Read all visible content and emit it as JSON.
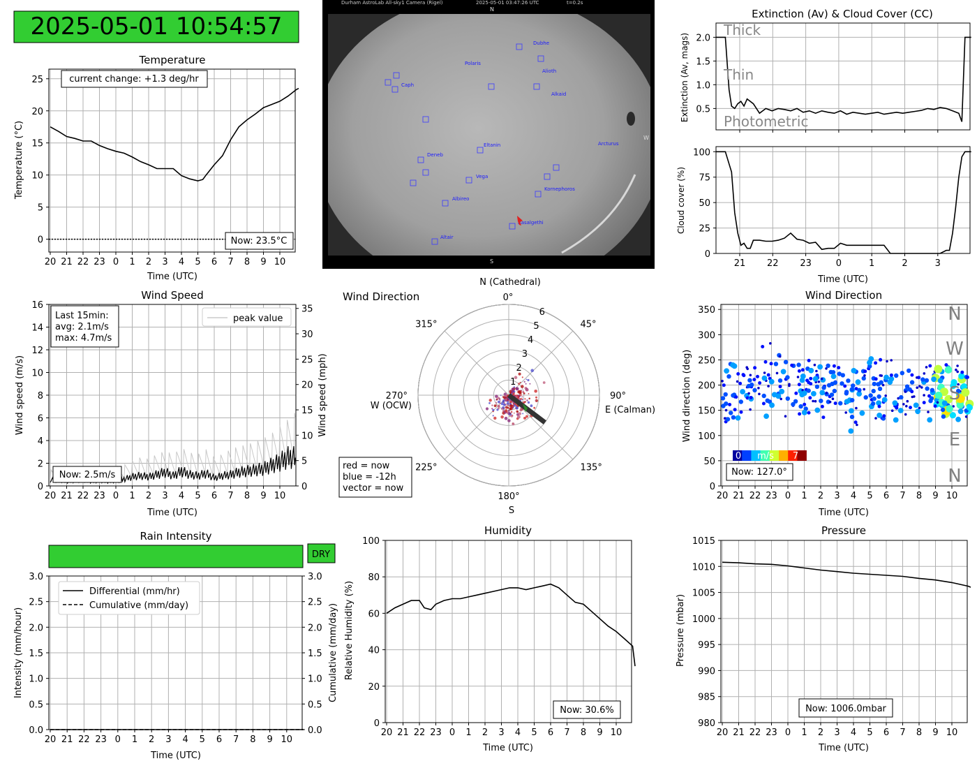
{
  "clock": {
    "text": "2025-05-01 10:54:57",
    "bg": "#32cd32"
  },
  "chart_data": [
    {
      "id": "temperature",
      "type": "line",
      "title": "Temperature",
      "xlabel": "Time (UTC)",
      "ylabel": "Temperature (°C)",
      "xticks": [
        "20",
        "21",
        "22",
        "23",
        "0",
        "1",
        "2",
        "3",
        "4",
        "5",
        "6",
        "7",
        "8",
        "9",
        "10"
      ],
      "yticks": [
        "0",
        "5",
        "10",
        "15",
        "20",
        "25"
      ],
      "xlim": [
        0,
        15.15
      ],
      "ylim": [
        -2,
        26.5
      ],
      "annotation": "current change: +1.3 deg/hr",
      "now": "Now: 23.5°C",
      "x": [
        0,
        0.5,
        1,
        1.5,
        2,
        2.5,
        3,
        3.5,
        4,
        4.5,
        5,
        5.5,
        6,
        6.5,
        7,
        7.5,
        8,
        8.5,
        9,
        9.3,
        9.5,
        10,
        10.5,
        11,
        11.5,
        12,
        12.5,
        13,
        13.5,
        14,
        14.5,
        15,
        15.15
      ],
      "y": [
        17.5,
        16.8,
        16.0,
        15.7,
        15.3,
        15.3,
        14.6,
        14.1,
        13.7,
        13.4,
        12.8,
        12.1,
        11.6,
        11.0,
        11.0,
        11.0,
        9.9,
        9.4,
        9.1,
        9.3,
        10.0,
        11.6,
        13.0,
        15.5,
        17.5,
        18.6,
        19.5,
        20.5,
        21.0,
        21.5,
        22.3,
        23.3,
        23.5
      ]
    },
    {
      "id": "wind-speed",
      "type": "line",
      "title": "Wind Speed",
      "xlabel": "Time (UTC)",
      "ylabel": "Wind speed (m/s)",
      "y2label": "Wind speed (mph)",
      "xticks": [
        "20",
        "21",
        "22",
        "23",
        "0",
        "1",
        "2",
        "3",
        "4",
        "5",
        "6",
        "7",
        "8",
        "9",
        "10"
      ],
      "yticks": [
        "0",
        "2",
        "4",
        "6",
        "8",
        "10",
        "12",
        "14",
        "16"
      ],
      "y2ticks": [
        "0",
        "5",
        "10",
        "15",
        "20",
        "25",
        "30",
        "35"
      ],
      "xlim": [
        0,
        15.15
      ],
      "ylim": [
        0,
        16
      ],
      "legend": "peak value",
      "stats": [
        "Last 15min:",
        "avg: 2.1m/s",
        "max: 4.7m/s"
      ],
      "now": "Now: 2.5m/s",
      "x": [
        0,
        0.5,
        1,
        1.5,
        2,
        2.5,
        3,
        3.5,
        4,
        4.5,
        5,
        5.5,
        6,
        6.5,
        7,
        7.5,
        8,
        8.5,
        9,
        9.5,
        10,
        10.5,
        11,
        11.5,
        12,
        12.5,
        13,
        13.5,
        14,
        14.5,
        15
      ],
      "y": [
        0.5,
        0.6,
        0.4,
        0.5,
        0.6,
        0.4,
        0.5,
        0.4,
        0.5,
        0.6,
        0.8,
        0.9,
        0.8,
        1.0,
        1.2,
        0.9,
        1.3,
        1.0,
        0.9,
        1.1,
        0.7,
        0.9,
        1.0,
        1.2,
        1.3,
        1.4,
        1.5,
        1.8,
        2.1,
        2.5,
        2.5
      ],
      "peak": [
        1.0,
        1.1,
        0.9,
        1.2,
        1.1,
        1.0,
        1.3,
        1.1,
        1.2,
        1.3,
        1.6,
        1.8,
        1.7,
        2.0,
        2.2,
        2.0,
        2.4,
        2.1,
        2.0,
        2.3,
        1.8,
        2.0,
        2.3,
        2.5,
        2.6,
        2.8,
        3.0,
        3.3,
        3.8,
        4.2,
        4.7
      ]
    },
    {
      "id": "wind-polar",
      "type": "scatter",
      "title": "Wind Direction",
      "north": "N (Cathedral)",
      "south": "S",
      "east": "E (Calman)",
      "west": "W (OCW)",
      "angle_labels": [
        "0°",
        "45°",
        "90°",
        "135°",
        "180°",
        "225°",
        "270°",
        "315°"
      ],
      "radial_labels": [
        "1",
        "2",
        "3",
        "4",
        "5",
        "6"
      ],
      "rmax": 6,
      "legend": [
        "red = now",
        "blue = -12h",
        "vector = now"
      ],
      "vector": {
        "angle": 127,
        "r": 3.0
      }
    },
    {
      "id": "wind-direction",
      "type": "scatter",
      "title": "Wind Direction",
      "xlabel": "Time (UTC)",
      "ylabel": "Wind direction (deg)",
      "xticks": [
        "20",
        "21",
        "22",
        "23",
        "0",
        "1",
        "2",
        "3",
        "4",
        "5",
        "6",
        "7",
        "8",
        "9",
        "10"
      ],
      "yticks": [
        "0",
        "50",
        "100",
        "150",
        "200",
        "250",
        "300",
        "350"
      ],
      "xlim": [
        0,
        15.15
      ],
      "ylim": [
        0,
        360
      ],
      "compass": [
        "N",
        "W",
        "S",
        "E",
        "N"
      ],
      "colorbar": {
        "min": "0",
        "unit": "m/s",
        "max": "7"
      },
      "now": "Now: 127.0°"
    },
    {
      "id": "extinction",
      "type": "line",
      "title": "Extinction (Av) & Cloud Cover (CC)",
      "ylabel": "Extinction (Av, mags)",
      "yticks": [
        "0.5",
        "1.0",
        "1.5",
        "2.0"
      ],
      "ylim": [
        0.05,
        2.3
      ],
      "bands": [
        "Thick",
        "Thin",
        "Photometric"
      ],
      "x": [
        0,
        0.3,
        0.42,
        0.5,
        0.6,
        0.7,
        0.8,
        0.9,
        1.0,
        1.2,
        1.4,
        1.6,
        1.8,
        2.0,
        2.2,
        2.4,
        2.6,
        2.8,
        3.0,
        3.2,
        3.4,
        3.6,
        3.8,
        4.0,
        4.2,
        4.4,
        4.6,
        4.8,
        5.0,
        5.2,
        5.4,
        5.6,
        5.8,
        6.0,
        6.2,
        6.4,
        6.6,
        6.8,
        7.0,
        7.2,
        7.4,
        7.6,
        7.8,
        7.9,
        8.0,
        8.1,
        8.2
      ],
      "y": [
        2.0,
        2.0,
        0.9,
        0.55,
        0.5,
        0.6,
        0.65,
        0.55,
        0.7,
        0.6,
        0.4,
        0.5,
        0.45,
        0.5,
        0.48,
        0.45,
        0.5,
        0.42,
        0.45,
        0.4,
        0.45,
        0.42,
        0.4,
        0.45,
        0.38,
        0.42,
        0.4,
        0.38,
        0.4,
        0.42,
        0.38,
        0.4,
        0.42,
        0.4,
        0.42,
        0.44,
        0.46,
        0.5,
        0.48,
        0.52,
        0.5,
        0.45,
        0.4,
        0.22,
        2.0,
        2.0,
        2.0
      ]
    },
    {
      "id": "cloud-cover",
      "type": "line",
      "xlabel": "Time (UTC)",
      "ylabel": "Cloud cover (%)",
      "xticks": [
        "21",
        "22",
        "23",
        "0",
        "1",
        "2",
        "3"
      ],
      "yticks": [
        "0",
        "25",
        "50",
        "75",
        "100"
      ],
      "ylim": [
        0,
        105
      ],
      "x": [
        0,
        0.3,
        0.5,
        0.6,
        0.7,
        0.8,
        0.9,
        1.0,
        1.1,
        1.2,
        1.4,
        1.6,
        1.8,
        2.0,
        2.2,
        2.4,
        2.6,
        2.8,
        3.0,
        3.2,
        3.4,
        3.6,
        3.8,
        4.0,
        4.2,
        4.4,
        4.6,
        4.8,
        5.0,
        5.2,
        5.4,
        5.6,
        5.8,
        6.0,
        6.4,
        6.8,
        7.2,
        7.4,
        7.5,
        7.6,
        7.7,
        7.8,
        7.9,
        8.0,
        8.2
      ],
      "y": [
        100,
        100,
        80,
        40,
        20,
        8,
        10,
        5,
        5,
        13,
        13,
        12,
        12,
        13,
        15,
        20,
        14,
        13,
        10,
        11,
        4,
        5,
        5,
        10,
        8,
        8,
        8,
        8,
        8,
        8,
        8,
        0,
        0,
        0,
        0,
        0,
        0,
        3,
        3,
        20,
        45,
        75,
        95,
        100,
        100
      ]
    },
    {
      "id": "rain",
      "type": "line",
      "title": "Rain Intensity",
      "status": "DRY",
      "xlabel": "Time (UTC)",
      "ylabel": "Intensity (mm/hour)",
      "y2label": "Cumulative (mm/day)",
      "xticks": [
        "20",
        "21",
        "22",
        "23",
        "0",
        "1",
        "2",
        "3",
        "4",
        "5",
        "6",
        "7",
        "8",
        "9",
        "10"
      ],
      "yticks": [
        "0.0",
        "0.5",
        "1.0",
        "1.5",
        "2.0",
        "2.5",
        "3.0"
      ],
      "y2ticks": [
        "0.0",
        "0.5",
        "1.0",
        "1.5",
        "2.0",
        "2.5",
        "3.0"
      ],
      "ylim": [
        0,
        3
      ],
      "series": [
        {
          "name": "Differential (mm/hr)",
          "values": [
            0,
            0,
            0,
            0,
            0,
            0,
            0,
            0,
            0,
            0,
            0,
            0,
            0,
            0,
            0,
            0
          ]
        },
        {
          "name": "Cumulative (mm/day)",
          "values": [
            0,
            0,
            0,
            0,
            0,
            0,
            0,
            0,
            0,
            0,
            0,
            0,
            0,
            0,
            0,
            0
          ]
        }
      ]
    },
    {
      "id": "humidity",
      "type": "line",
      "title": "Humidity",
      "xlabel": "Time (UTC)",
      "ylabel": "Relative Humidity (%)",
      "xticks": [
        "20",
        "21",
        "22",
        "23",
        "0",
        "1",
        "2",
        "3",
        "4",
        "5",
        "6",
        "7",
        "8",
        "9",
        "10"
      ],
      "yticks": [
        "0",
        "20",
        "40",
        "60",
        "80",
        "100"
      ],
      "xlim": [
        0,
        15.15
      ],
      "ylim": [
        0,
        100
      ],
      "now": "Now: 30.6%",
      "x": [
        0,
        0.5,
        1,
        1.5,
        2,
        2.3,
        2.7,
        3,
        3.5,
        4,
        4.5,
        5,
        5.5,
        6,
        6.5,
        7,
        7.5,
        8,
        8.5,
        9,
        9.5,
        10,
        10.5,
        11,
        11.5,
        12,
        12.5,
        13,
        13.5,
        14,
        14.5,
        15,
        15.15
      ],
      "y": [
        60,
        63,
        65,
        67,
        67,
        63,
        62,
        65,
        67,
        68,
        68,
        69,
        70,
        71,
        72,
        73,
        74,
        74,
        73,
        74,
        75,
        76,
        74,
        70,
        66,
        65,
        61,
        57,
        53,
        50,
        46,
        42,
        31
      ]
    },
    {
      "id": "pressure",
      "type": "line",
      "title": "Pressure",
      "xlabel": "Time (UTC)",
      "ylabel": "Pressure (mbar)",
      "xticks": [
        "20",
        "21",
        "22",
        "23",
        "0",
        "1",
        "2",
        "3",
        "4",
        "5",
        "6",
        "7",
        "8",
        "9",
        "10"
      ],
      "yticks": [
        "980",
        "985",
        "990",
        "995",
        "1000",
        "1005",
        "1010",
        "1015"
      ],
      "xlim": [
        0,
        15.15
      ],
      "ylim": [
        980,
        1015
      ],
      "now": "Now: 1006.0mbar",
      "x": [
        0,
        1,
        2,
        3,
        4,
        5,
        6,
        7,
        8,
        9,
        10,
        11,
        12,
        13,
        14,
        15,
        15.15
      ],
      "y": [
        1010.8,
        1010.7,
        1010.5,
        1010.4,
        1010.1,
        1009.7,
        1009.3,
        1009.0,
        1008.7,
        1008.5,
        1008.3,
        1008.1,
        1007.7,
        1007.4,
        1006.9,
        1006.2,
        1006.0
      ]
    }
  ],
  "camera": {
    "header_left": "Durham AstroLab All-sky1 Camera (Rigel)",
    "header_mid": "2025-05-01 03:47:26 UTC",
    "header_right": "t=0.2s",
    "n": "N",
    "s": "S",
    "w": "W",
    "stars": [
      "Dubhe",
      "Polaris",
      "Alioth",
      "Caph",
      "Alkaid",
      "Arcturus",
      "Deneb",
      "Eltanin",
      "Vega",
      "Kornephoros",
      "Albireo",
      "Rasalgethi",
      "Altair"
    ]
  }
}
